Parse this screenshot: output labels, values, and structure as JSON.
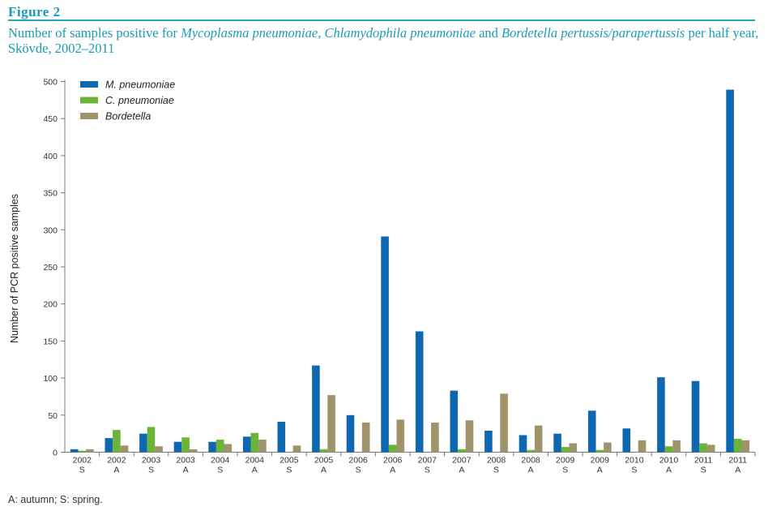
{
  "figure_label": "Figure 2",
  "caption": {
    "part1": "Number of samples positive for ",
    "it1": "Mycoplasma pneumoniae",
    "part2": ", ",
    "it2": "Chlamydophila pneumoniae",
    "part3": " and ",
    "it3": "Bordetella pertussis/parapertussis",
    "part4": " per half year, Skövde, 2002–2011"
  },
  "footnote": "A: autumn; S: spring.",
  "colors": {
    "M. pneumoniae": "#0f67b0",
    "C. pneumoniae": "#6bb43a",
    "Bordetella": "#a0936a"
  },
  "chart_data": {
    "type": "bar",
    "ylabel": "Number of PCR positive samples",
    "xlabel": "",
    "ylim": [
      0,
      500
    ],
    "yticks": [
      0,
      50,
      100,
      150,
      200,
      250,
      300,
      350,
      400,
      450,
      500
    ],
    "legend_position": "top-left",
    "grid": false,
    "categories": [
      {
        "year": "2002",
        "season": "S"
      },
      {
        "year": "2002",
        "season": "A"
      },
      {
        "year": "2003",
        "season": "S"
      },
      {
        "year": "2003",
        "season": "A"
      },
      {
        "year": "2004",
        "season": "S"
      },
      {
        "year": "2004",
        "season": "A"
      },
      {
        "year": "2005",
        "season": "S"
      },
      {
        "year": "2005",
        "season": "A"
      },
      {
        "year": "2006",
        "season": "S"
      },
      {
        "year": "2006",
        "season": "A"
      },
      {
        "year": "2007",
        "season": "S"
      },
      {
        "year": "2007",
        "season": "A"
      },
      {
        "year": "2008",
        "season": "S"
      },
      {
        "year": "2008",
        "season": "A"
      },
      {
        "year": "2009",
        "season": "S"
      },
      {
        "year": "2009",
        "season": "A"
      },
      {
        "year": "2010",
        "season": "S"
      },
      {
        "year": "2010",
        "season": "A"
      },
      {
        "year": "2011",
        "season": "S"
      },
      {
        "year": "2011",
        "season": "A"
      }
    ],
    "series": [
      {
        "name": "M. pneumoniae",
        "values": [
          4,
          19,
          25,
          14,
          14,
          21,
          41,
          117,
          50,
          291,
          163,
          83,
          29,
          23,
          25,
          56,
          32,
          101,
          96,
          489
        ]
      },
      {
        "name": "C. pneumoniae",
        "values": [
          2,
          30,
          34,
          20,
          17,
          26,
          0,
          4,
          0,
          10,
          0,
          4,
          0,
          3,
          7,
          3,
          0,
          8,
          12,
          18
        ]
      },
      {
        "name": "Bordetella",
        "values": [
          4,
          9,
          8,
          4,
          11,
          17,
          9,
          77,
          40,
          44,
          40,
          43,
          79,
          36,
          12,
          13,
          16,
          16,
          10,
          16
        ]
      }
    ]
  }
}
